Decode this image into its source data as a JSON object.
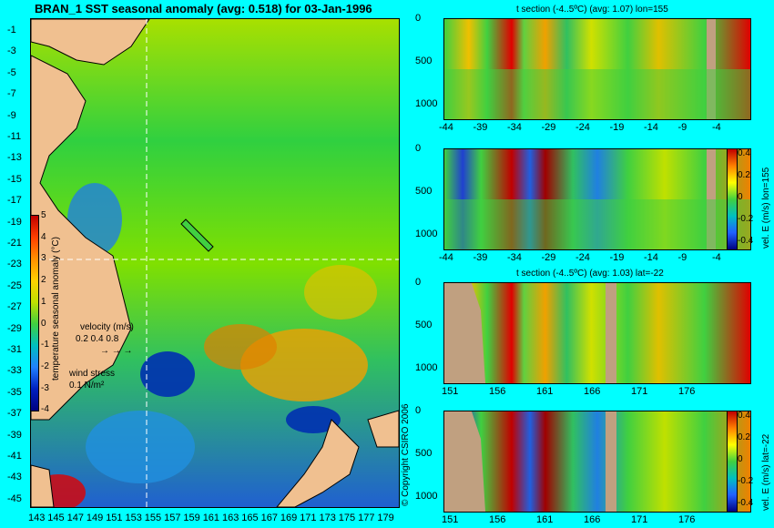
{
  "main_map": {
    "title": "BRAN_1 SST seasonal anomaly (avg: 0.518) for 03-Jan-1996",
    "lat_ticks": [
      "-1",
      "-3",
      "-5",
      "-7",
      "-9",
      "-11",
      "-13",
      "-15",
      "-17",
      "-19",
      "-21",
      "-23",
      "-25",
      "-27",
      "-29",
      "-31",
      "-33",
      "-35",
      "-37",
      "-39",
      "-41",
      "-43",
      "-45"
    ],
    "lon_ticks": [
      "143",
      "145",
      "147",
      "149",
      "151",
      "153",
      "155",
      "157",
      "159",
      "161",
      "163",
      "165",
      "167",
      "169",
      "171",
      "173",
      "175",
      "177",
      "179"
    ],
    "colorbar_ticks": [
      "5",
      "4",
      "3",
      "2",
      "1",
      "0",
      "-1",
      "-2",
      "-3",
      "-4"
    ],
    "colorbar_label": "temperature seasonal anomaly (°C)",
    "velocity_label": "velocity (m/s)",
    "velocity_scale": "0.2 0.4 0.8",
    "wind_label": "wind stress",
    "wind_scale": "0.1 N/m²",
    "copyright": "© Copyright CSIRO 2006"
  },
  "sections": [
    {
      "title": "t section (-4..5ºC) (avg: 1.07) lon=155",
      "x_ticks": [
        "-44",
        "-39",
        "-34",
        "-29",
        "-24",
        "-19",
        "-14",
        "-9",
        "-4"
      ],
      "y_ticks": [
        "0",
        "500",
        "1000"
      ]
    },
    {
      "title": "",
      "x_ticks": [
        "-44",
        "-39",
        "-34",
        "-29",
        "-24",
        "-19",
        "-14",
        "-9",
        "-4"
      ],
      "y_ticks": [
        "0",
        "500",
        "1000"
      ],
      "cbar_ticks": [
        "0.4",
        "0.2",
        "0",
        "-0.2",
        "-0.4"
      ],
      "cbar_label": "vel. E (m/s) lon=155"
    },
    {
      "title": "t section (-4..5ºC) (avg: 1.03) lat=-22",
      "x_ticks": [
        "151",
        "156",
        "161",
        "166",
        "171",
        "176"
      ],
      "y_ticks": [
        "0",
        "500",
        "1000"
      ]
    },
    {
      "title": "",
      "x_ticks": [
        "151",
        "156",
        "161",
        "166",
        "171",
        "176"
      ],
      "y_ticks": [
        "0",
        "500",
        "1000"
      ],
      "cbar_ticks": [
        "0.4",
        "0.2",
        "0",
        "-0.2",
        "-0.4"
      ],
      "cbar_label": "vel. E (m/s) lat=-22"
    }
  ]
}
